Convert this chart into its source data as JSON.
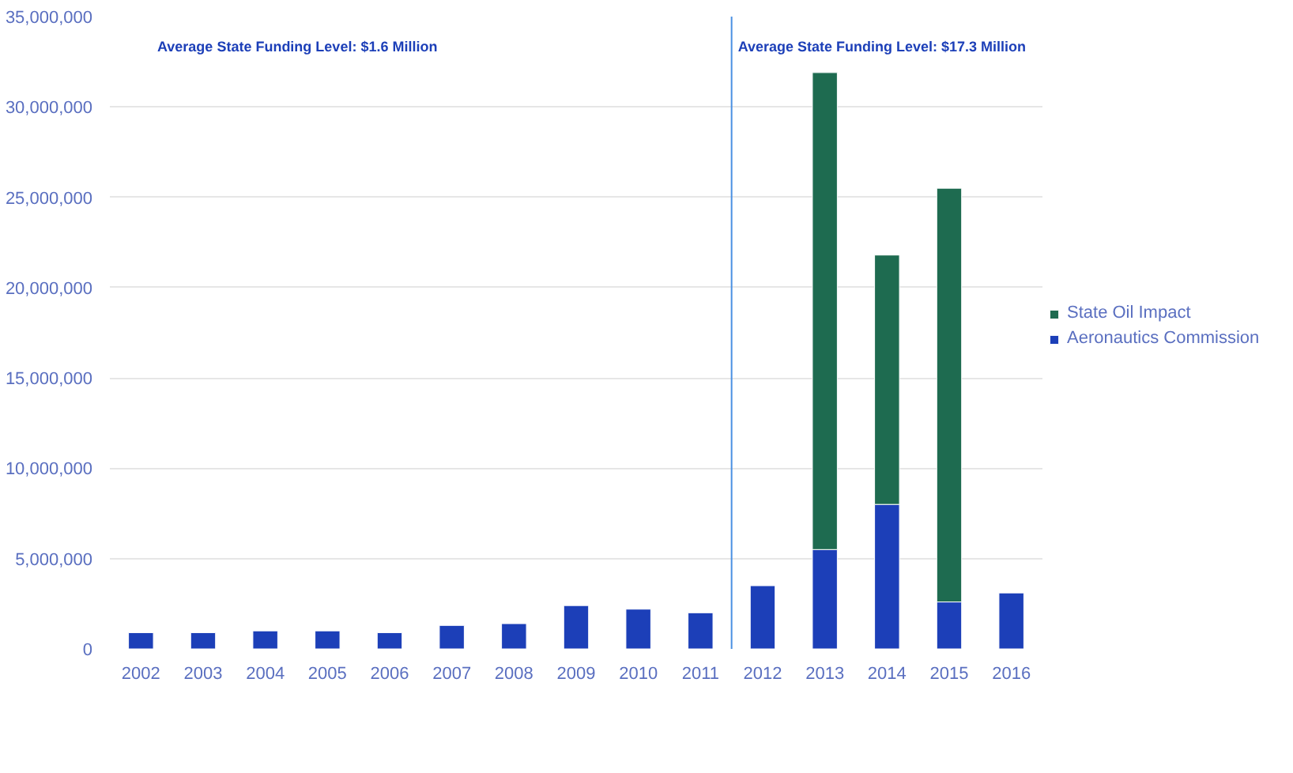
{
  "chart_data": {
    "type": "bar",
    "stacked": true,
    "x": [
      2002,
      2003,
      2004,
      2005,
      2006,
      2007,
      2008,
      2009,
      2010,
      2011,
      2012,
      2013,
      2014,
      2015,
      2016
    ],
    "series": [
      {
        "name": "Aeronautics Commission",
        "color": "#1c3fb8",
        "values": [
          900000,
          900000,
          1000000,
          1000000,
          900000,
          1300000,
          1400000,
          2400000,
          2200000,
          2000000,
          3500000,
          5500000,
          8000000,
          2600000,
          3100000
        ]
      },
      {
        "name": "State Oil Impact",
        "color": "#1e6b50",
        "values": [
          null,
          null,
          null,
          null,
          null,
          null,
          null,
          null,
          null,
          null,
          null,
          26400000,
          13800000,
          22900000,
          null
        ]
      }
    ],
    "xlim": [
      2001.5,
      2016.5
    ],
    "xticks": [
      2002,
      2003,
      2004,
      2005,
      2006,
      2007,
      2008,
      2009,
      2010,
      2011,
      2012,
      2013,
      2014,
      2015,
      2016
    ],
    "ylim": [
      0,
      35000000
    ],
    "yticks": [
      {
        "value": 0,
        "label": "0"
      },
      {
        "value": 5000000,
        "label": "5,000,000"
      },
      {
        "value": 10000000,
        "label": "10,000,000"
      },
      {
        "value": 15000000,
        "label": "15,000,000"
      },
      {
        "value": 20000000,
        "label": "20,000,000"
      },
      {
        "value": 25000000,
        "label": "25,000,000"
      },
      {
        "value": 30000000,
        "label": "30,000,000"
      },
      {
        "value": 35000000,
        "label": "35,000,000"
      }
    ],
    "ref_lines": [
      {
        "axis": "x",
        "value": 2011.5,
        "color": "#4a90e2"
      }
    ],
    "annotations": [
      "Average State Funding Level: $1.6 Million",
      "Average State Funding Level: $17.3 Million"
    ],
    "grid": "y",
    "legend": "right"
  }
}
